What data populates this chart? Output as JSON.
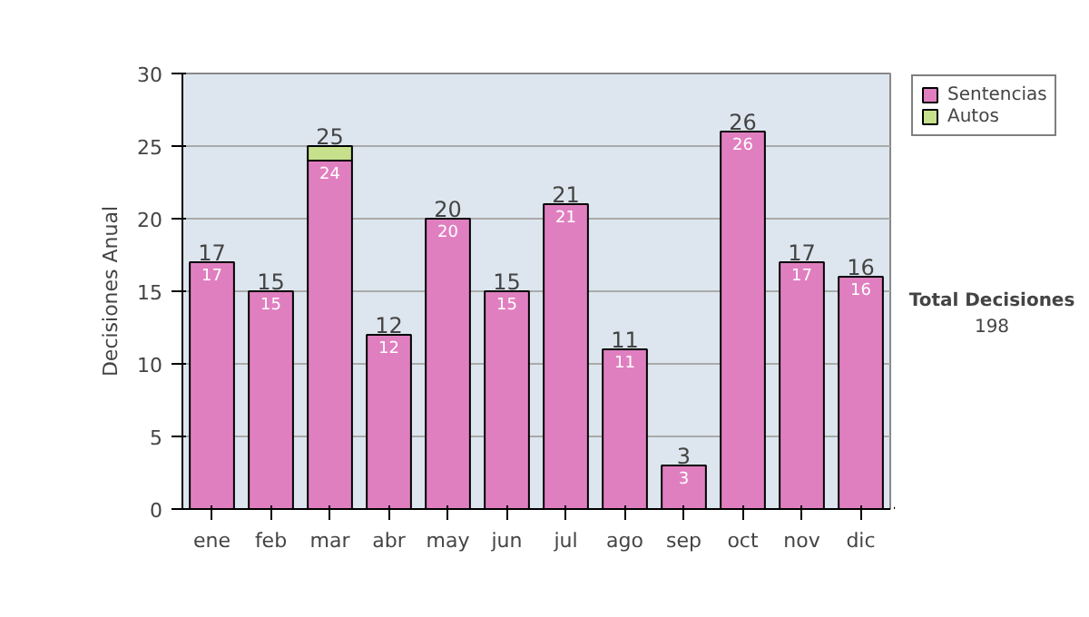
{
  "chart_data": {
    "type": "bar",
    "stacked": true,
    "ylabel": "Decisiones Anual",
    "categories": [
      "ene",
      "feb",
      "mar",
      "abr",
      "may",
      "jun",
      "jul",
      "ago",
      "sep",
      "oct",
      "nov",
      "dic"
    ],
    "series": [
      {
        "name": "Sentencias",
        "color": "#e07fc0",
        "values": [
          17,
          15,
          24,
          12,
          20,
          15,
          21,
          11,
          3,
          26,
          17,
          16
        ],
        "value_labels": [
          "17",
          "15",
          "24",
          "12",
          "20",
          "15",
          "21",
          "11",
          "3",
          "26",
          "17",
          "16"
        ]
      },
      {
        "name": "Autos",
        "color": "#c6e08c",
        "values": [
          0,
          0,
          1,
          0,
          0,
          0,
          0,
          0,
          0,
          0,
          0,
          0
        ]
      }
    ],
    "totals": [
      "17",
      "15",
      "25",
      "12",
      "20",
      "15",
      "21",
      "11",
      "3",
      "26",
      "17",
      "16"
    ],
    "ylim": [
      0,
      30
    ],
    "yticks": [
      0,
      5,
      10,
      15,
      20,
      25,
      30
    ],
    "grid": "y",
    "legend": "right",
    "annotations": [
      "Total Decisiones",
      "198"
    ]
  }
}
